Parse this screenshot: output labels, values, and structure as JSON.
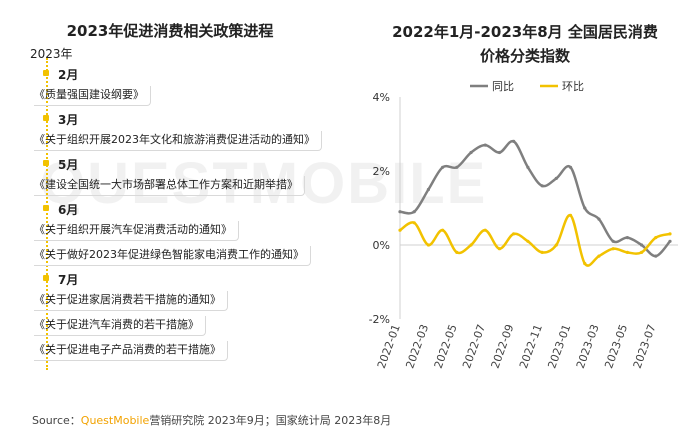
{
  "watermark": "QUESTMOBILE",
  "left_panel": {
    "title": "2023年促进消费相关政策进程",
    "year": "2023年",
    "groups": [
      {
        "month": "2月",
        "policies": [
          "《质量强国建设纲要》"
        ]
      },
      {
        "month": "3月",
        "policies": [
          "《关于组织开展2023年文化和旅游消费促进活动的通知》"
        ]
      },
      {
        "month": "5月",
        "policies": [
          "《建设全国统一大市场部署总体工作方案和近期举措》"
        ]
      },
      {
        "month": "6月",
        "policies": [
          "《关于组织开展汽车促消费活动的通知》",
          "《关于做好2023年促进绿色智能家电消费工作的通知》"
        ]
      },
      {
        "month": "7月",
        "policies": [
          "《关于促进家居消费若干措施的通知》",
          "《关于促进汽车消费的若干措施》",
          "《关于促进电子产品消费的若干措施》"
        ]
      }
    ]
  },
  "right_panel": {
    "title_line1": "2022年1月-2023年8月 全国居民消费",
    "title_line2": "价格分类指数"
  },
  "chart_data": {
    "type": "line",
    "title": "2022年1月-2023年8月 全国居民消费价格分类指数",
    "x": [
      "2022-01",
      "2022-02",
      "2022-03",
      "2022-04",
      "2022-05",
      "2022-06",
      "2022-07",
      "2022-08",
      "2022-09",
      "2022-10",
      "2022-11",
      "2022-12",
      "2023-01",
      "2023-02",
      "2023-03",
      "2023-04",
      "2023-05",
      "2023-06",
      "2023-07",
      "2023-08"
    ],
    "x_tick_labels": [
      "2022-01",
      "2022-03",
      "2022-05",
      "2022-07",
      "2022-09",
      "2022-11",
      "2023-01",
      "2023-03",
      "2023-05",
      "2023-07"
    ],
    "series": [
      {
        "name": "同比",
        "color": "#7f7f7f",
        "values": [
          0.9,
          0.9,
          1.5,
          2.1,
          2.1,
          2.5,
          2.7,
          2.5,
          2.8,
          2.1,
          1.6,
          1.8,
          2.1,
          1.0,
          0.7,
          0.1,
          0.2,
          0.0,
          -0.3,
          0.1
        ]
      },
      {
        "name": "环比",
        "color": "#f2c200",
        "values": [
          0.4,
          0.6,
          0.0,
          0.4,
          -0.2,
          0.0,
          0.4,
          -0.1,
          0.3,
          0.1,
          -0.2,
          0.0,
          0.8,
          -0.5,
          -0.3,
          -0.1,
          -0.2,
          -0.2,
          0.2,
          0.3
        ]
      }
    ],
    "y_ticks": [
      "4%",
      "2%",
      "0%",
      "-2%"
    ],
    "ylim": [
      -2,
      4
    ],
    "legend_position": "top"
  },
  "source": {
    "prefix": "Source：",
    "brand": "QuestMobile",
    "suffix": "营销研究院 2023年9月；国家统计局 2023年8月"
  }
}
